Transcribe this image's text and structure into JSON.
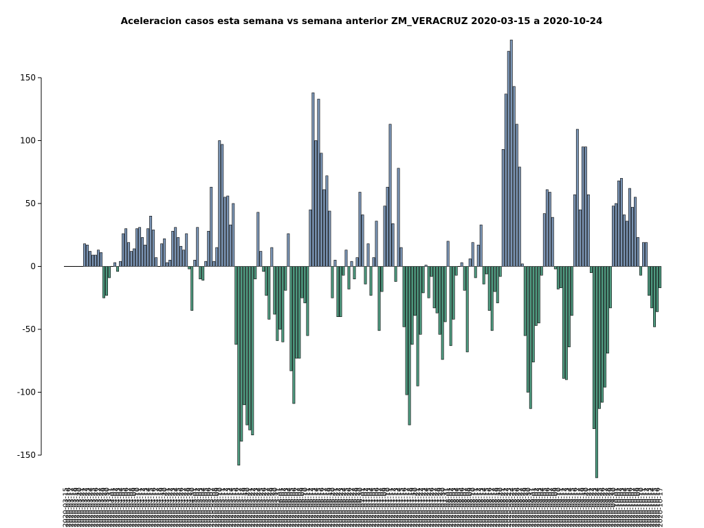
{
  "chart_data": {
    "type": "bar",
    "title": "Aceleracion casos esta semana vs semana anterior ZM_VERACRUZ 2020-03-15 a 2020-10-24",
    "xlabel": "",
    "ylabel": "",
    "start_date": "2020-03-15",
    "end_date": "2020-10-24",
    "ylim": [
      -170,
      180
    ],
    "yticks": [
      -150,
      -100,
      -50,
      0,
      50,
      100,
      150
    ],
    "grid": false,
    "colors": {
      "positive": "#7b95b5",
      "negative": "#4f9a80",
      "edge": "#000000"
    },
    "values": [
      0,
      0,
      0,
      0,
      0,
      0,
      0,
      18,
      17,
      12,
      9,
      9,
      13,
      11,
      -25,
      -23,
      -9,
      0,
      3,
      -4,
      4,
      26,
      30,
      19,
      12,
      14,
      30,
      31,
      23,
      17,
      30,
      40,
      29,
      7,
      0,
      18,
      22,
      3,
      5,
      28,
      31,
      23,
      16,
      13,
      26,
      -2,
      -35,
      5,
      31,
      -10,
      -11,
      4,
      28,
      63,
      4,
      15,
      100,
      97,
      55,
      56,
      33,
      50,
      -62,
      -158,
      -139,
      -110,
      -126,
      -130,
      -134,
      -10,
      43,
      12,
      -4,
      -23,
      -42,
      15,
      -38,
      -59,
      -50,
      -60,
      -19,
      26,
      -83,
      -109,
      -73,
      -73,
      -25,
      -29,
      -55,
      45,
      138,
      100,
      133,
      90,
      61,
      72,
      44,
      -25,
      5,
      -40,
      -40,
      -7,
      13,
      -18,
      4,
      -10,
      7,
      59,
      41,
      -14,
      18,
      -23,
      7,
      36,
      -51,
      -20,
      48,
      63,
      113,
      34,
      -12,
      78,
      15,
      -48,
      -102,
      -126,
      -62,
      -39,
      -95,
      -54,
      -21,
      1,
      -25,
      -8,
      -33,
      -37,
      -54,
      -74,
      -44,
      20,
      -63,
      -42,
      -7,
      0,
      3,
      -19,
      -68,
      6,
      19,
      -9,
      17,
      33,
      -14,
      -6,
      -35,
      -51,
      -20,
      -29,
      -8,
      93,
      137,
      171,
      180,
      143,
      113,
      79,
      2,
      -55,
      -100,
      -113,
      -76,
      -47,
      -45,
      -7,
      42,
      61,
      59,
      39,
      -2,
      -18,
      -17,
      -89,
      -90,
      -64,
      -39,
      57,
      109,
      45,
      95,
      95,
      57,
      -5,
      -129,
      -168,
      -113,
      -108,
      -96,
      -69,
      -33,
      48,
      50,
      68,
      70,
      41,
      36,
      62,
      47,
      55,
      23,
      -7,
      19,
      19,
      -23,
      -33,
      -48,
      -36,
      -17
    ]
  }
}
